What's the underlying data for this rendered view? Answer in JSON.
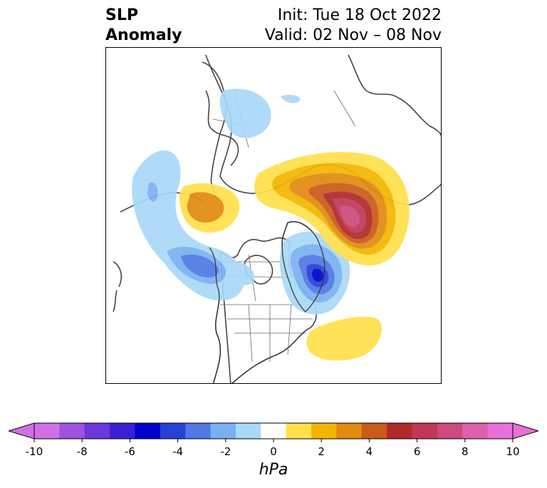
{
  "title": {
    "line1": "SLP",
    "line2": "Anomaly",
    "init": "Init: Tue 18 Oct 2022",
    "valid": "Valid: 02 Nov – 08 Nov"
  },
  "colorbar": {
    "units": "hPa",
    "tick_labels": [
      "-10",
      "-8",
      "-6",
      "-4",
      "-2",
      "0",
      "2",
      "4",
      "6",
      "8",
      "10"
    ],
    "levels": [
      -10,
      -9,
      -8,
      -7,
      -6,
      -5,
      -4,
      -3,
      -2,
      -1,
      1,
      2,
      3,
      4,
      5,
      6,
      7,
      8,
      9,
      10
    ],
    "colors": [
      "#d170e6",
      "#9f52e0",
      "#6a38d8",
      "#3a1fd4",
      "#0000cc",
      "#2740d8",
      "#4f78e3",
      "#7ab0f0",
      "#aad8f8",
      "#ffffff",
      "#ffe04a",
      "#f2b600",
      "#e08a10",
      "#c85a1a",
      "#b02828",
      "#c03858",
      "#cc4a7a",
      "#dc60ac",
      "#e870d8"
    ],
    "extend": "both"
  },
  "map": {
    "projection": "north-polar-stereographic",
    "features": [
      {
        "name": "pacific-low",
        "sign": "negative",
        "peak_hpa": -5
      },
      {
        "name": "greenland-low",
        "sign": "negative",
        "peak_hpa": -6
      },
      {
        "name": "western-russia-high",
        "sign": "positive",
        "peak_hpa": 8
      },
      {
        "name": "east-asia-high",
        "sign": "positive",
        "peak_hpa": 3
      },
      {
        "name": "central-atlantic-high",
        "sign": "positive",
        "peak_hpa": 1
      },
      {
        "name": "north-africa-low",
        "sign": "negative",
        "peak_hpa": -1
      }
    ]
  }
}
